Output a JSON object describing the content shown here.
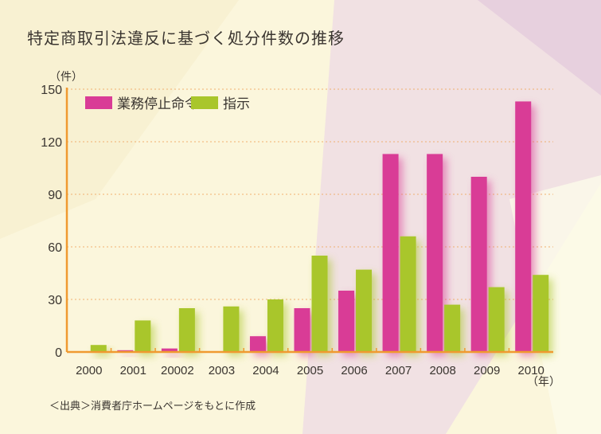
{
  "title": "特定商取引法違反に基づく処分件数の推移",
  "source": "＜出典＞消費者庁ホームページをもとに作成",
  "chart_data": {
    "type": "bar",
    "title": "特定商取引法違反に基づく処分件数の推移",
    "ylabel": "（件）",
    "xlabel": "（年）",
    "ylim": [
      0,
      150
    ],
    "yticks": [
      0,
      30,
      60,
      90,
      120,
      150
    ],
    "grid": true,
    "legend": "top-left",
    "categories": [
      "2000",
      "2001",
      "20002",
      "2003",
      "2004",
      "2005",
      "2006",
      "2007",
      "2008",
      "2009",
      "2010"
    ],
    "series": [
      {
        "name": "業務停止命令",
        "color": "#d93c96",
        "values": [
          0,
          1,
          2,
          0,
          9,
          25,
          35,
          113,
          113,
          100,
          143
        ]
      },
      {
        "name": "指示",
        "color": "#a9c62b",
        "values": [
          4,
          18,
          25,
          26,
          30,
          55,
          47,
          66,
          27,
          37,
          44
        ]
      }
    ]
  }
}
